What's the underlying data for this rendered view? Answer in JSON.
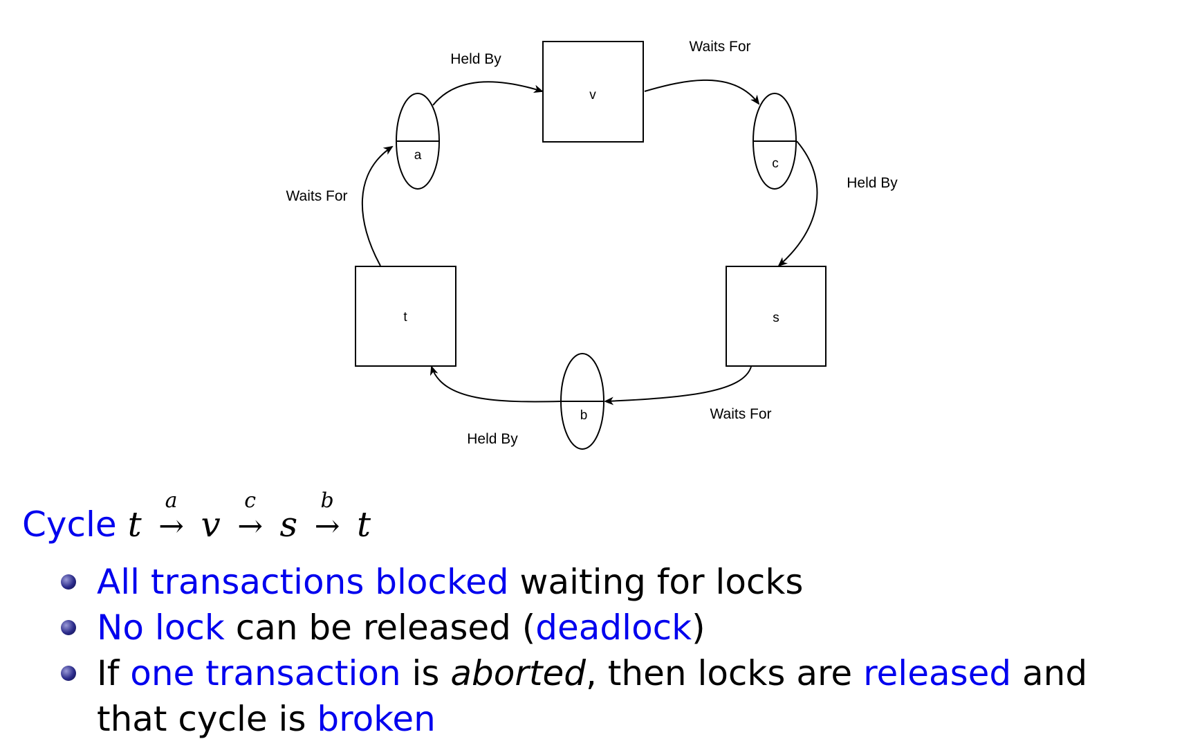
{
  "diagram": {
    "nodes": {
      "v": "v",
      "t": "t",
      "s": "s",
      "a": "a",
      "b": "b",
      "c": "c"
    },
    "edges": {
      "a_to_v": "Held By",
      "v_to_c": "Waits For",
      "c_to_s": "Held By",
      "s_to_b": "Waits For",
      "b_to_t": "Held By",
      "t_to_a": "Waits For"
    }
  },
  "cycle": {
    "label": "Cycle",
    "t1": "t",
    "r1": "a",
    "v": "v",
    "r2": "c",
    "s": "s",
    "r3": "b",
    "t2": "t",
    "arrow": "→"
  },
  "bullets": [
    {
      "p1": "All transactions blocked",
      "p2": " waiting for locks"
    },
    {
      "p1": "No lock",
      "p2": " can be released (",
      "p3": "deadlock",
      "p4": ")"
    },
    {
      "p1": "If ",
      "p2": "one transaction",
      "p3": " is ",
      "p4": "aborted",
      "p5": ", then locks are ",
      "p6": "released",
      "p7": " and that cycle is ",
      "p8": "broken"
    }
  ],
  "colors": {
    "accent": "#0000ee",
    "bullet": "#2b2b8a"
  }
}
